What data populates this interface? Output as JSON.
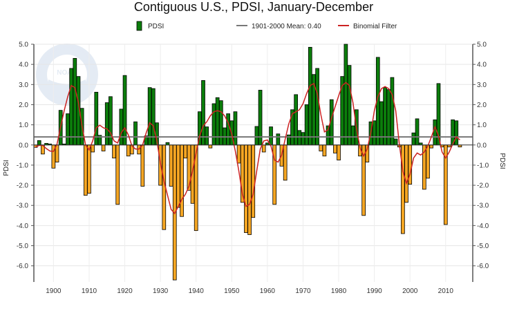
{
  "chart_data": {
    "type": "bar",
    "title": "Contiguous U.S., PDSI, January-December",
    "ylabel_left": "PDSI",
    "ylabel_right": "PDSI",
    "ylim": [
      -6.8,
      5.0
    ],
    "yticks": [
      5.0,
      4.0,
      3.0,
      2.0,
      1.0,
      0.0,
      -1.0,
      -2.0,
      -3.0,
      -4.0,
      -5.0,
      -6.0
    ],
    "ytick_labels": [
      "5.0",
      "4.0",
      "3.0",
      "2.0",
      "1.0",
      "0.0",
      "-1.0",
      "-2.0",
      "-3.0",
      "-4.0",
      "-5.0",
      "-6.0"
    ],
    "xticks": [
      1900,
      1910,
      1920,
      1930,
      1940,
      1950,
      1960,
      1970,
      1980,
      1990,
      2000,
      2010
    ],
    "xtick_labels": [
      "1900",
      "1910",
      "1920",
      "1930",
      "1940",
      "1950",
      "1960",
      "1970",
      "1980",
      "1990",
      "2000",
      "2010"
    ],
    "xlim": [
      1894.5,
      2017.6
    ],
    "legend": {
      "placement": "top",
      "entries": [
        {
          "label": "PDSI",
          "kind": "bar"
        },
        {
          "label": "1901-2000 Mean: 0.40",
          "kind": "line-gray"
        },
        {
          "label": "Binomial Filter",
          "kind": "line-red"
        }
      ]
    },
    "mean": 0.4,
    "colors": {
      "positive": "#0b7d0b",
      "negative": "#f5a623",
      "mean": "#888888",
      "filter": "#cc2222",
      "bar_edge": "#000000"
    },
    "series": [
      {
        "name": "PDSI",
        "start_year": 1895,
        "values": [
          -0.12,
          0.22,
          -0.45,
          0.08,
          0.05,
          -1.15,
          -0.85,
          1.72,
          0.05,
          1.55,
          3.8,
          4.3,
          3.4,
          1.82,
          -2.5,
          -2.4,
          -0.35,
          2.62,
          0.48,
          -0.3,
          2.1,
          2.4,
          -0.65,
          -2.95,
          1.78,
          3.45,
          -0.55,
          -0.45,
          1.15,
          -0.45,
          -2.05,
          0.45,
          2.85,
          2.8,
          1.1,
          -2.0,
          -4.2,
          0.12,
          -2.05,
          -6.7,
          -3.1,
          -3.55,
          -0.65,
          -2.25,
          -2.9,
          -4.25,
          1.65,
          3.2,
          0.9,
          -0.15,
          2.05,
          2.35,
          2.2,
          0.85,
          1.55,
          1.2,
          1.65,
          -0.9,
          -2.85,
          -4.35,
          -4.45,
          -3.6,
          0.92,
          2.72,
          -0.35,
          0.1,
          0.9,
          -2.95,
          0.55,
          -1.05,
          -1.75,
          0.5,
          1.75,
          2.5,
          0.72,
          0.62,
          2.0,
          4.85,
          3.5,
          3.8,
          -0.3,
          -0.55,
          0.95,
          2.25,
          -0.4,
          -0.75,
          3.4,
          5.0,
          3.95,
          0.95,
          1.75,
          -0.55,
          -3.5,
          -0.85,
          1.15,
          1.2,
          4.35,
          2.15,
          2.85,
          2.75,
          3.35,
          0.3,
          -0.1,
          -4.4,
          -2.85,
          -1.95,
          0.6,
          1.3,
          0.1,
          -2.2,
          -1.65,
          -0.15,
          1.25,
          3.05,
          -0.1,
          -3.95,
          -0.1,
          1.25,
          1.2,
          -0.1
        ]
      },
      {
        "name": "Binomial Filter",
        "start_year": 1895,
        "values": [
          -0.1,
          -0.02,
          -0.02,
          -0.18,
          -0.3,
          -0.32,
          0.05,
          0.9,
          1.7,
          2.4,
          2.95,
          2.85,
          2.1,
          0.95,
          0.0,
          -0.25,
          0.2,
          0.85,
          0.98,
          0.85,
          0.8,
          0.6,
          0.2,
          0.1,
          0.6,
          0.85,
          0.5,
          -0.05,
          -0.2,
          -0.2,
          0.0,
          0.6,
          1.1,
          0.95,
          0.2,
          -0.9,
          -1.8,
          -2.5,
          -3.2,
          -3.4,
          -3.05,
          -2.7,
          -2.45,
          -2.05,
          -1.3,
          -0.4,
          0.45,
          0.95,
          1.15,
          1.45,
          1.65,
          1.7,
          1.65,
          1.45,
          1.1,
          0.55,
          -0.3,
          -1.3,
          -2.45,
          -3.05,
          -2.95,
          -2.45,
          -1.3,
          -0.2,
          0.2,
          0.25,
          -0.05,
          -0.75,
          -0.85,
          -0.5,
          0.3,
          1.05,
          1.55,
          1.65,
          1.75,
          2.05,
          2.55,
          2.95,
          3.05,
          2.55,
          1.5,
          0.65,
          0.75,
          1.35,
          1.9,
          2.45,
          2.95,
          3.1,
          2.95,
          2.1,
          0.8,
          -0.15,
          -0.55,
          -0.2,
          0.6,
          1.7,
          2.4,
          2.8,
          2.9,
          2.8,
          2.5,
          1.7,
          0.05,
          -1.3,
          -1.9,
          -1.45,
          -0.65,
          -0.4,
          -0.5,
          -0.35,
          -0.05,
          0.4,
          0.9,
          0.45,
          -0.35,
          -0.65,
          -0.35,
          0.05,
          0.4,
          0.25
        ]
      }
    ]
  },
  "watermark_text": "NATIONAL OCEANIC AND ATMOSPHERIC ADMINISTRATION",
  "watermark_abbrev": "NOAA"
}
